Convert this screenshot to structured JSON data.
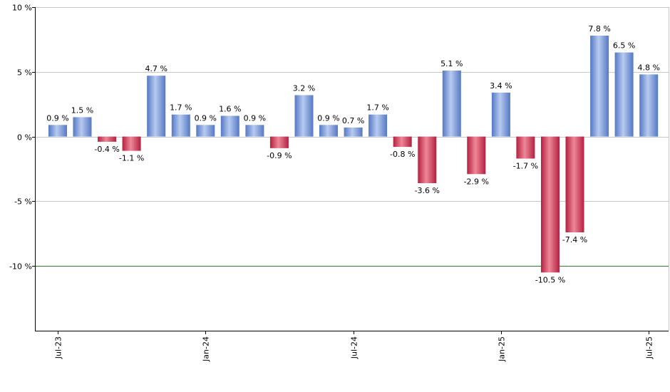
{
  "chart_data": {
    "type": "bar",
    "categories": [
      "Jul-23",
      "Aug-23",
      "Sep-23",
      "Oct-23",
      "Nov-23",
      "Dec-23",
      "Jan-24",
      "Feb-24",
      "Mar-24",
      "Apr-24",
      "May-24",
      "Jun-24",
      "Jul-24",
      "Aug-24",
      "Sep-24",
      "Oct-24",
      "Nov-24",
      "Dec-24",
      "Jan-25",
      "Feb-25",
      "Mar-25",
      "Apr-25",
      "May-25",
      "Jun-25",
      "Jul-25"
    ],
    "values": [
      0.9,
      1.5,
      -0.4,
      -1.1,
      4.7,
      1.7,
      0.9,
      1.6,
      0.9,
      -0.9,
      3.2,
      0.9,
      0.7,
      1.7,
      -0.8,
      -3.6,
      5.1,
      -2.9,
      3.4,
      -1.7,
      -10.5,
      -7.4,
      7.8,
      6.5,
      4.8
    ],
    "value_labels": [
      "0.9 %",
      "1.5 %",
      "-0.4 %",
      "-1.1 %",
      "4.7 %",
      "1.7 %",
      "0.9 %",
      "1.6 %",
      "0.9 %",
      "-0.9 %",
      "3.2 %",
      "0.9 %",
      "0.7 %",
      "1.7 %",
      "-0.8 %",
      "-3.6 %",
      "5.1 %",
      "-2.9 %",
      "3.4 %",
      "-1.7 %",
      "-10.5 %",
      "-7.4 %",
      "7.8 %",
      "6.5 %",
      "4.8 %"
    ],
    "x_tick_labels": [
      {
        "index": 0,
        "label": "Jul-23"
      },
      {
        "index": 6,
        "label": "Jan-24"
      },
      {
        "index": 12,
        "label": "Jul-24"
      },
      {
        "index": 18,
        "label": "Jan-25"
      },
      {
        "index": 24,
        "label": "Jul-25"
      }
    ],
    "y_ticks": [
      10,
      5,
      0,
      -5,
      -10
    ],
    "y_tick_labels": [
      "10 %",
      "5 %",
      "0 %",
      "-5 %",
      "-10 %"
    ],
    "ylim": [
      -15,
      10
    ],
    "reference_line": -10,
    "grid": true,
    "title": "",
    "xlabel": "",
    "ylabel": "",
    "colors": {
      "positive_light": "#b7cbf0",
      "positive_dark": "#5578c4",
      "negative_light": "#ee8898",
      "negative_dark": "#b3203f",
      "grid": "#c8c8c8",
      "axis": "#000000",
      "reference_line": "#2e7d2e"
    }
  }
}
